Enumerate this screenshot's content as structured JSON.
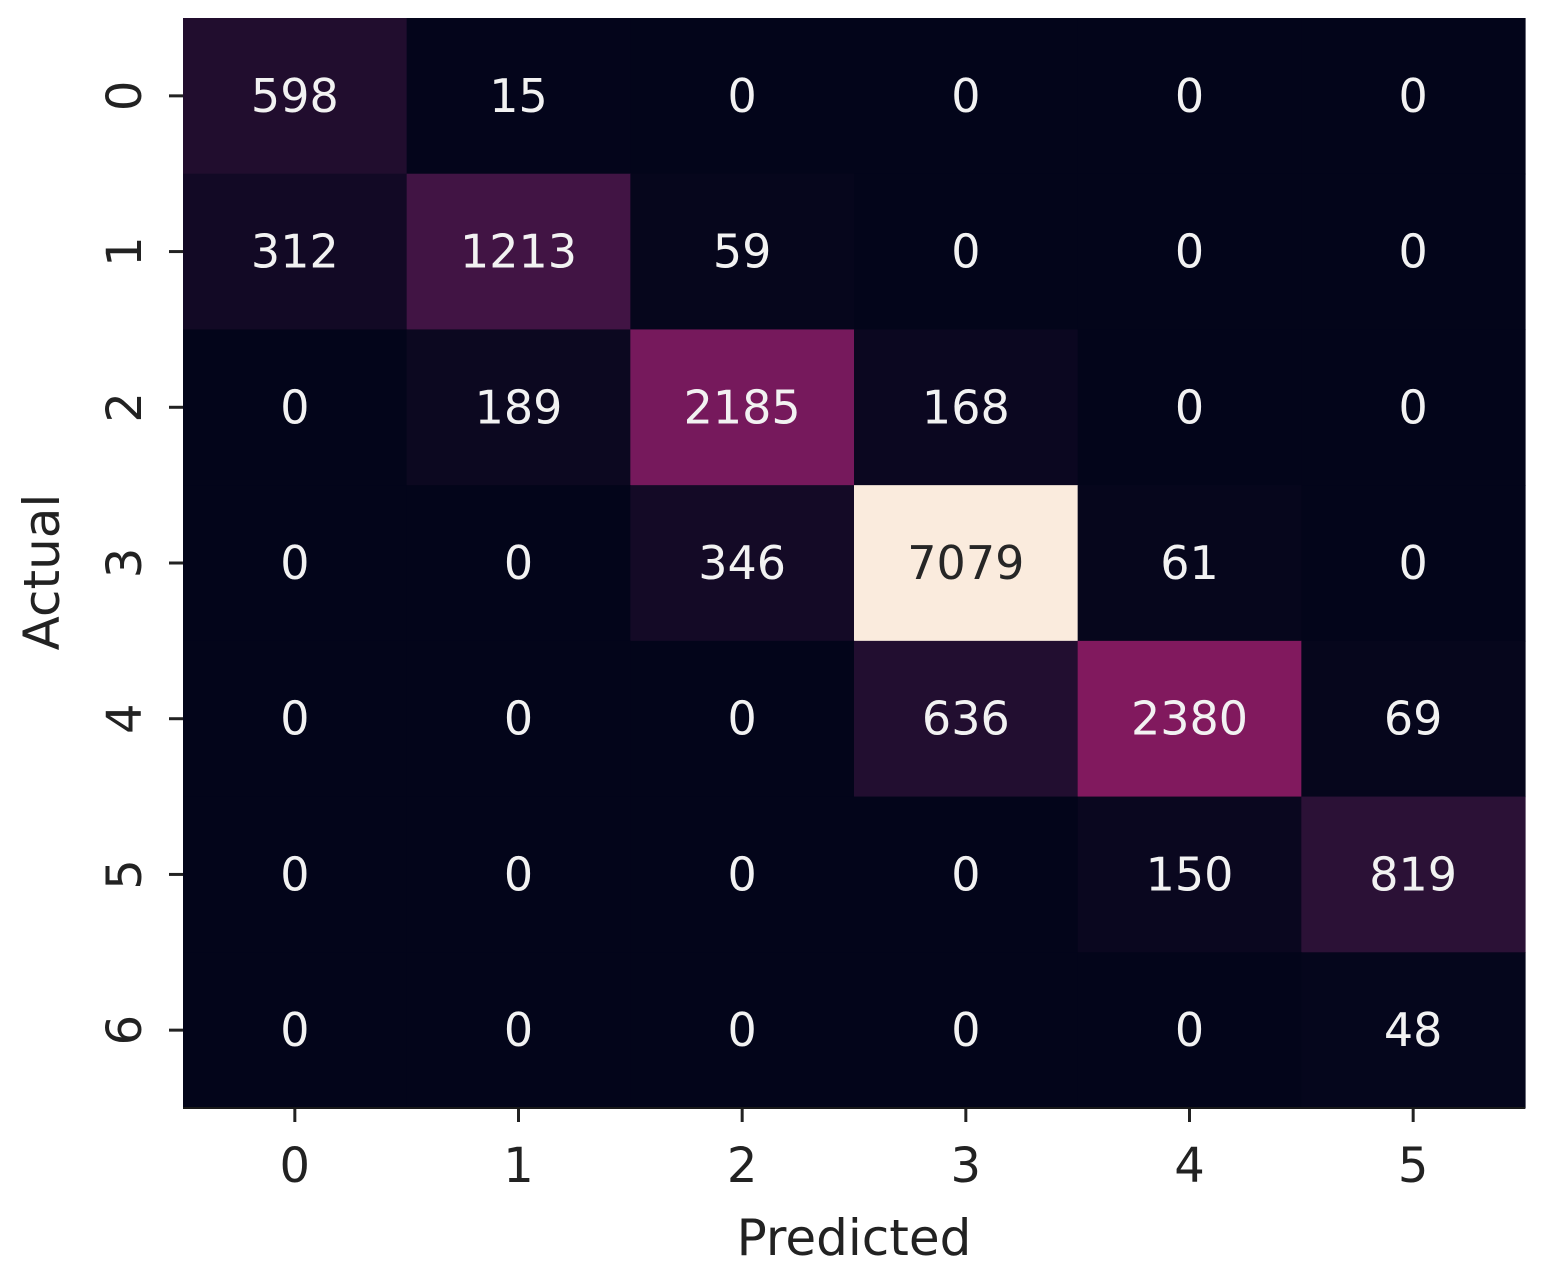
{
  "chart_data": {
    "type": "heatmap",
    "title": "",
    "xlabel": "Predicted",
    "ylabel": "Actual",
    "x_categories": [
      "0",
      "1",
      "2",
      "3",
      "4",
      "5"
    ],
    "y_categories": [
      "0",
      "1",
      "2",
      "3",
      "4",
      "5",
      "6"
    ],
    "values": [
      [
        598,
        15,
        0,
        0,
        0,
        0
      ],
      [
        312,
        1213,
        59,
        0,
        0,
        0
      ],
      [
        0,
        189,
        2185,
        168,
        0,
        0
      ],
      [
        0,
        0,
        346,
        7079,
        61,
        0
      ],
      [
        0,
        0,
        0,
        636,
        2380,
        69
      ],
      [
        0,
        0,
        0,
        0,
        150,
        819
      ],
      [
        0,
        0,
        0,
        0,
        0,
        48
      ]
    ],
    "colormap": "rocket",
    "colorbar": false,
    "annotations": true
  }
}
